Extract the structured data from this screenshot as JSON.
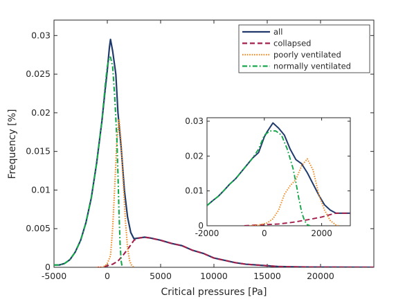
{
  "chart_data": [
    {
      "type": "line",
      "panel": "main",
      "xlabel": "Critical pressures [Pa]",
      "ylabel": "Frequency [%]",
      "xlim": [
        -5000,
        25000
      ],
      "ylim": [
        0,
        0.032
      ],
      "xticks": [
        -5000,
        0,
        5000,
        10000,
        15000,
        20000
      ],
      "xtick_labels": [
        "-5000",
        "0",
        "5000",
        "10000",
        "15000",
        "20000"
      ],
      "yticks": [
        0,
        0.005,
        0.01,
        0.015,
        0.02,
        0.025,
        0.03
      ],
      "ytick_labels": [
        "0",
        "0.005",
        "0.01",
        "0.015",
        "0.02",
        "0.025",
        "0.03"
      ],
      "grid": false,
      "legend_position": "top-right",
      "legend": [
        "all",
        "collapsed",
        "poorly ventilated",
        "normally ventilated"
      ],
      "series": [
        {
          "name": "all",
          "color": "#1f3a6b",
          "dash": "solid",
          "points": [
            [
              -5000,
              0.0003
            ],
            [
              -4500,
              0.0003
            ],
            [
              -4000,
              0.0005
            ],
            [
              -3500,
              0.001
            ],
            [
              -3000,
              0.002
            ],
            [
              -2500,
              0.0035
            ],
            [
              -2000,
              0.0058
            ],
            [
              -1500,
              0.009
            ],
            [
              -1000,
              0.0135
            ],
            [
              -500,
              0.019
            ],
            [
              -200,
              0.023
            ],
            [
              0,
              0.0255
            ],
            [
              200,
              0.0285
            ],
            [
              300,
              0.0295
            ],
            [
              500,
              0.028
            ],
            [
              800,
              0.025
            ],
            [
              1000,
              0.02
            ],
            [
              1300,
              0.0155
            ],
            [
              1600,
              0.01
            ],
            [
              1900,
              0.0065
            ],
            [
              2200,
              0.0045
            ],
            [
              2500,
              0.0037
            ],
            [
              3000,
              0.0038
            ],
            [
              3500,
              0.0039
            ],
            [
              4000,
              0.0038
            ],
            [
              5000,
              0.0035
            ],
            [
              6000,
              0.0031
            ],
            [
              7000,
              0.0028
            ],
            [
              8000,
              0.0022
            ],
            [
              9000,
              0.0018
            ],
            [
              10000,
              0.0012
            ],
            [
              11000,
              0.0009
            ],
            [
              12000,
              0.0006
            ],
            [
              13000,
              0.0004
            ],
            [
              14000,
              0.0003
            ],
            [
              15000,
              0.0002
            ],
            [
              16000,
              0.0001
            ],
            [
              18000,
              5e-05
            ],
            [
              20000,
              2e-05
            ],
            [
              25000,
              0.0
            ]
          ]
        },
        {
          "name": "collapsed",
          "color": "#a31f4a",
          "dash": "dashed",
          "points": [
            [
              -1000,
              0.0
            ],
            [
              -500,
              0.0
            ],
            [
              0,
              0.0002
            ],
            [
              500,
              0.0004
            ],
            [
              1000,
              0.0008
            ],
            [
              1500,
              0.0016
            ],
            [
              2000,
              0.0025
            ],
            [
              2500,
              0.0035
            ],
            [
              3000,
              0.0038
            ],
            [
              3500,
              0.0039
            ],
            [
              4000,
              0.0038
            ],
            [
              5000,
              0.0035
            ],
            [
              6000,
              0.0031
            ],
            [
              7000,
              0.0028
            ],
            [
              8000,
              0.0022
            ],
            [
              9000,
              0.0018
            ],
            [
              10000,
              0.0012
            ],
            [
              11000,
              0.0009
            ],
            [
              12000,
              0.0006
            ],
            [
              13000,
              0.0004
            ],
            [
              14000,
              0.0003
            ],
            [
              15000,
              0.0002
            ],
            [
              16000,
              0.0001
            ],
            [
              18000,
              5e-05
            ],
            [
              20000,
              2e-05
            ],
            [
              25000,
              0.0
            ]
          ]
        },
        {
          "name": "poorly ventilated",
          "color": "#f08a24",
          "dash": "dotted",
          "points": [
            [
              -1000,
              0.0
            ],
            [
              -500,
              0.0
            ],
            [
              -200,
              0.0002
            ],
            [
              0,
              0.0005
            ],
            [
              300,
              0.0015
            ],
            [
              500,
              0.005
            ],
            [
              700,
              0.0105
            ],
            [
              900,
              0.0165
            ],
            [
              1100,
              0.0192
            ],
            [
              1300,
              0.016
            ],
            [
              1500,
              0.011
            ],
            [
              1700,
              0.006
            ],
            [
              1900,
              0.0025
            ],
            [
              2100,
              0.0008
            ],
            [
              2300,
              0.0002
            ],
            [
              2500,
              0.0
            ]
          ]
        },
        {
          "name": "normally ventilated",
          "color": "#14a84a",
          "dash": "dashdot",
          "points": [
            [
              -5000,
              0.0003
            ],
            [
              -4500,
              0.0003
            ],
            [
              -4000,
              0.0005
            ],
            [
              -3500,
              0.001
            ],
            [
              -3000,
              0.002
            ],
            [
              -2500,
              0.0035
            ],
            [
              -2000,
              0.0058
            ],
            [
              -1500,
              0.009
            ],
            [
              -1000,
              0.0135
            ],
            [
              -500,
              0.019
            ],
            [
              -200,
              0.0235
            ],
            [
              0,
              0.026
            ],
            [
              200,
              0.0272
            ],
            [
              300,
              0.0272
            ],
            [
              500,
              0.026
            ],
            [
              700,
              0.022
            ],
            [
              900,
              0.0165
            ],
            [
              1000,
              0.012
            ],
            [
              1100,
              0.007
            ],
            [
              1200,
              0.003
            ],
            [
              1300,
              0.0008
            ],
            [
              1400,
              0.0
            ]
          ]
        }
      ]
    },
    {
      "type": "line",
      "panel": "inset",
      "xlim": [
        -2000,
        3000
      ],
      "ylim": [
        0,
        0.031
      ],
      "xticks": [
        -2000,
        0,
        2000
      ],
      "xtick_labels": [
        "-2000",
        "0",
        "2000"
      ],
      "yticks": [
        0,
        0.01,
        0.02,
        0.03
      ],
      "ytick_labels": [
        "0",
        "0.01",
        "0.02",
        "0.03"
      ],
      "grid": false,
      "series": [
        {
          "name": "all",
          "color": "#1f3a6b",
          "dash": "solid",
          "points": [
            [
              -2000,
              0.0058
            ],
            [
              -1800,
              0.0072
            ],
            [
              -1600,
              0.0085
            ],
            [
              -1400,
              0.0102
            ],
            [
              -1200,
              0.012
            ],
            [
              -1000,
              0.0135
            ],
            [
              -800,
              0.0155
            ],
            [
              -600,
              0.0175
            ],
            [
              -400,
              0.0195
            ],
            [
              -200,
              0.021
            ],
            [
              0,
              0.0255
            ],
            [
              100,
              0.027
            ],
            [
              300,
              0.0295
            ],
            [
              500,
              0.028
            ],
            [
              700,
              0.026
            ],
            [
              900,
              0.022
            ],
            [
              1100,
              0.019
            ],
            [
              1300,
              0.0178
            ],
            [
              1500,
              0.0152
            ],
            [
              1700,
              0.012
            ],
            [
              1900,
              0.0088
            ],
            [
              2100,
              0.006
            ],
            [
              2300,
              0.0045
            ],
            [
              2500,
              0.0036
            ],
            [
              3000,
              0.0036
            ]
          ]
        },
        {
          "name": "collapsed",
          "color": "#a31f4a",
          "dash": "dashed",
          "points": [
            [
              -700,
              0.0
            ],
            [
              -300,
              0.0002
            ],
            [
              0,
              0.0003
            ],
            [
              500,
              0.0005
            ],
            [
              1000,
              0.001
            ],
            [
              1500,
              0.0017
            ],
            [
              2000,
              0.0025
            ],
            [
              2300,
              0.0032
            ],
            [
              2500,
              0.0036
            ],
            [
              3000,
              0.0036
            ]
          ]
        },
        {
          "name": "poorly ventilated",
          "color": "#f08a24",
          "dash": "dotted",
          "points": [
            [
              -500,
              0.0
            ],
            [
              -200,
              0.0002
            ],
            [
              100,
              0.0008
            ],
            [
              300,
              0.002
            ],
            [
              500,
              0.0045
            ],
            [
              700,
              0.009
            ],
            [
              900,
              0.0115
            ],
            [
              1100,
              0.0132
            ],
            [
              1300,
              0.0172
            ],
            [
              1500,
              0.0192
            ],
            [
              1700,
              0.016
            ],
            [
              1900,
              0.009
            ],
            [
              2100,
              0.0045
            ],
            [
              2300,
              0.0015
            ],
            [
              2500,
              0.0002
            ],
            [
              2600,
              0.0
            ]
          ]
        },
        {
          "name": "normally ventilated",
          "color": "#14a84a",
          "dash": "dashdot",
          "points": [
            [
              -2000,
              0.0058
            ],
            [
              -1800,
              0.0072
            ],
            [
              -1600,
              0.0085
            ],
            [
              -1400,
              0.0102
            ],
            [
              -1200,
              0.012
            ],
            [
              -1000,
              0.0135
            ],
            [
              -800,
              0.0155
            ],
            [
              -600,
              0.0175
            ],
            [
              -400,
              0.0195
            ],
            [
              -200,
              0.022
            ],
            [
              0,
              0.026
            ],
            [
              200,
              0.0272
            ],
            [
              400,
              0.0272
            ],
            [
              600,
              0.026
            ],
            [
              800,
              0.022
            ],
            [
              1000,
              0.0165
            ],
            [
              1100,
              0.0125
            ],
            [
              1200,
              0.008
            ],
            [
              1300,
              0.004
            ],
            [
              1400,
              0.0015
            ],
            [
              1500,
              0.0003
            ],
            [
              1600,
              0.0
            ]
          ]
        }
      ]
    }
  ]
}
